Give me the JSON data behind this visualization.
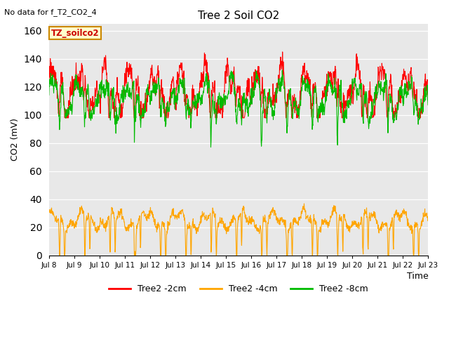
{
  "title": "Tree 2 Soil CO2",
  "no_data_text": "No data for f_T2_CO2_4",
  "ylabel": "CO2 (mV)",
  "xlabel": "Time",
  "box_label": "TZ_soilco2",
  "legend": [
    "Tree2 -2cm",
    "Tree2 -4cm",
    "Tree2 -8cm"
  ],
  "legend_colors": [
    "#ff0000",
    "#ffa500",
    "#00bb00"
  ],
  "ylim": [
    0,
    165
  ],
  "yticks": [
    0,
    20,
    40,
    60,
    80,
    100,
    120,
    140,
    160
  ],
  "xtick_labels": [
    "Jul 8",
    "Jul 9",
    "Jul 10",
    "Jul 11",
    "Jul 12",
    "Jul 13",
    "Jul 14",
    "Jul 15",
    "Jul 16",
    "Jul 17",
    "Jul 18",
    "Jul 19",
    "Jul 20",
    "Jul 21",
    "Jul 22",
    "Jul 23"
  ],
  "bg_color": "#e8e8e8",
  "fig_color": "#ffffff",
  "line_width": 0.8
}
